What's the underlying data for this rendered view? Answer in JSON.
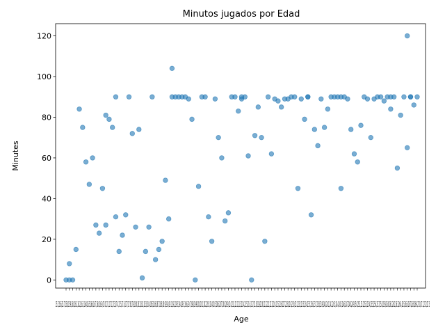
{
  "chart_data": {
    "type": "scatter",
    "title": "Minutos jugados por Edad",
    "xlabel": "Age",
    "ylabel": "Minutes",
    "ylim": [
      -4,
      126
    ],
    "yticks": [
      0,
      20,
      40,
      60,
      80,
      100,
      120
    ],
    "grid": false,
    "point_color": "#1f77b4",
    "x_ticks_text": "15.5,15.6,15.7,15.8,15.9,16.0,16.1,16.2,16.3,16.4,16.5,16.6,16.7,16.8,16.9,17.0,17.1,17.2,17.3,17.4,17.5,17.6,17.7,17.8,17.9,18.0,18.1,18.2,18.3,18.4,18.5,18.6,18.7,18.8,18.9,19.0,19.1,19.2,19.3,19.4,19.5,19.6,19.7,19.8,19.9,20.0,20.1,20.2,20.3,20.4,20.5,20.6,20.7,20.8,20.9,21.0,21.1,21.2,21.3,21.4,21.5,21.6,21.7,21.8,21.9,22.0,22.1,22.2,22.3,22.4,22.5,22.6,22.7,22.8,22.9,23.0,23.1,23.2,23.3,23.4,23.5,23.6,23.7,23.8,23.9,24.0,24.1,24.2,24.3,24.4,24.5,24.6,24.7,24.8,24.9,25.0,25.1,25.2,25.3,25.4,25.5,25.6,25.7,25.8,25.9,26.0,26.1,26.2,26.3,26.4,26.5,26.6,26.7,26.8,26.9,27.0,27.1,27.2,27.3",
    "series": [
      {
        "name": "Minutes",
        "points": [
          [
            0,
            0
          ],
          [
            1,
            8
          ],
          [
            1,
            0
          ],
          [
            2,
            0
          ],
          [
            3,
            15
          ],
          [
            4,
            84
          ],
          [
            5,
            75
          ],
          [
            6,
            58
          ],
          [
            7,
            47
          ],
          [
            8,
            60
          ],
          [
            9,
            27
          ],
          [
            10,
            23
          ],
          [
            11,
            45
          ],
          [
            12,
            27
          ],
          [
            12,
            81
          ],
          [
            13,
            79
          ],
          [
            14,
            75
          ],
          [
            15,
            31
          ],
          [
            15,
            90
          ],
          [
            16,
            14
          ],
          [
            17,
            22
          ],
          [
            18,
            32
          ],
          [
            19,
            90
          ],
          [
            20,
            72
          ],
          [
            21,
            26
          ],
          [
            22,
            74
          ],
          [
            23,
            1
          ],
          [
            24,
            14
          ],
          [
            25,
            26
          ],
          [
            26,
            90
          ],
          [
            27,
            10
          ],
          [
            28,
            15
          ],
          [
            29,
            19
          ],
          [
            30,
            49
          ],
          [
            31,
            30
          ],
          [
            32,
            104
          ],
          [
            32,
            90
          ],
          [
            33,
            90
          ],
          [
            34,
            90
          ],
          [
            35,
            90
          ],
          [
            36,
            90
          ],
          [
            37,
            89
          ],
          [
            38,
            79
          ],
          [
            39,
            0
          ],
          [
            40,
            46
          ],
          [
            41,
            90
          ],
          [
            42,
            90
          ],
          [
            43,
            31
          ],
          [
            44,
            19
          ],
          [
            45,
            89
          ],
          [
            46,
            70
          ],
          [
            47,
            60
          ],
          [
            48,
            29
          ],
          [
            49,
            33
          ],
          [
            50,
            90
          ],
          [
            51,
            90
          ],
          [
            52,
            83
          ],
          [
            53,
            90
          ],
          [
            53,
            89
          ],
          [
            54,
            90
          ],
          [
            55,
            61
          ],
          [
            56,
            0
          ],
          [
            57,
            71
          ],
          [
            58,
            85
          ],
          [
            59,
            70
          ],
          [
            60,
            19
          ],
          [
            61,
            90
          ],
          [
            62,
            62
          ],
          [
            63,
            89
          ],
          [
            64,
            88
          ],
          [
            65,
            85
          ],
          [
            66,
            89
          ],
          [
            67,
            89
          ],
          [
            68,
            90
          ],
          [
            69,
            90
          ],
          [
            70,
            45
          ],
          [
            71,
            89
          ],
          [
            72,
            79
          ],
          [
            73,
            90
          ],
          [
            73,
            90
          ],
          [
            74,
            32
          ],
          [
            75,
            74
          ],
          [
            76,
            66
          ],
          [
            77,
            89
          ],
          [
            78,
            75
          ],
          [
            79,
            84
          ],
          [
            80,
            90
          ],
          [
            81,
            90
          ],
          [
            82,
            90
          ],
          [
            83,
            45
          ],
          [
            83,
            90
          ],
          [
            84,
            90
          ],
          [
            85,
            89
          ],
          [
            86,
            74
          ],
          [
            87,
            62
          ],
          [
            88,
            58
          ],
          [
            89,
            76
          ],
          [
            90,
            90
          ],
          [
            91,
            89
          ],
          [
            92,
            70
          ],
          [
            93,
            89
          ],
          [
            94,
            90
          ],
          [
            95,
            90
          ],
          [
            96,
            88
          ],
          [
            97,
            90
          ],
          [
            98,
            84
          ],
          [
            98,
            90
          ],
          [
            99,
            90
          ],
          [
            100,
            55
          ],
          [
            101,
            81
          ],
          [
            102,
            90
          ],
          [
            103,
            120
          ],
          [
            103,
            65
          ],
          [
            104,
            90
          ],
          [
            104,
            90
          ],
          [
            105,
            86
          ],
          [
            106,
            90
          ]
        ]
      }
    ]
  }
}
